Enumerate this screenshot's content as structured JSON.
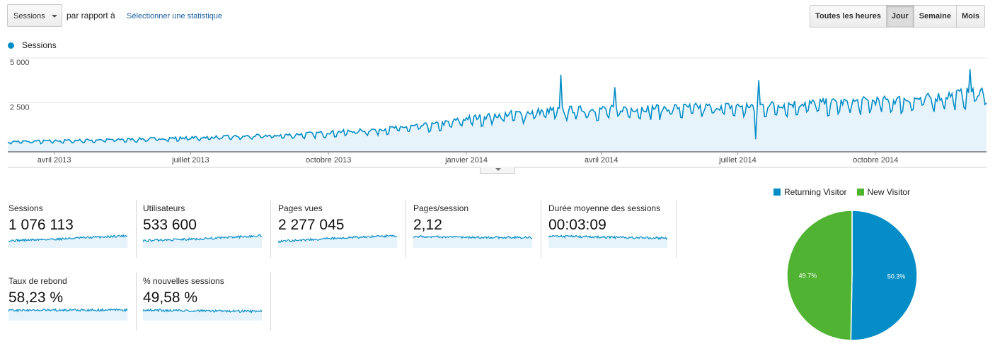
{
  "toolbar": {
    "metric_select": "Sessions",
    "compare_label": "par rapport à",
    "select_stat_link": "Sélectionner une statistique",
    "periods": [
      {
        "label": "Toutes les heures",
        "active": false
      },
      {
        "label": "Jour",
        "active": true
      },
      {
        "label": "Semaine",
        "active": false
      },
      {
        "label": "Mois",
        "active": false
      }
    ]
  },
  "colors": {
    "series": "#058dc7",
    "fill": "#e6f3fa",
    "new_visitor": "#50b432",
    "grid": "#e5e5e5"
  },
  "chart_data": [
    {
      "type": "area",
      "series": [
        {
          "name": "Sessions"
        }
      ],
      "ylim": [
        0,
        5000
      ],
      "ytick_labels": [
        "5 000",
        "2 500"
      ],
      "yticks": [
        5000,
        2500
      ],
      "xtick_labels": [
        "avril 2013",
        "juillet 2013",
        "octobre 2013",
        "janvier 2014",
        "avril 2014",
        "juillet 2014",
        "octobre 2014"
      ],
      "x_range": [
        "2013-03-01",
        "2014-12-14"
      ],
      "trend": [
        [
          "2013-03-01",
          550
        ],
        [
          "2013-06-01",
          700
        ],
        [
          "2013-09-01",
          900
        ],
        [
          "2013-11-01",
          1200
        ],
        [
          "2013-12-15",
          1500
        ],
        [
          "2014-01-01",
          1800
        ],
        [
          "2014-02-01",
          2050
        ],
        [
          "2014-03-01",
          2250
        ],
        [
          "2014-05-01",
          2350
        ],
        [
          "2014-07-01",
          2450
        ],
        [
          "2014-09-01",
          2650
        ],
        [
          "2014-11-01",
          2850
        ],
        [
          "2014-12-14",
          3300
        ]
      ],
      "peaks": [
        [
          "2014-03-05",
          4300
        ],
        [
          "2014-04-10",
          3600
        ],
        [
          "2014-07-15",
          4000
        ],
        [
          "2014-12-03",
          4600
        ]
      ],
      "dips": [
        [
          "2014-07-13",
          700
        ]
      ]
    },
    {
      "type": "pie",
      "labels": [
        "Returning Visitor",
        "New Visitor"
      ],
      "values": [
        50.3,
        49.7
      ],
      "value_labels": [
        "50.3%",
        "49.7%"
      ],
      "legend": "top"
    }
  ],
  "scorecards": [
    {
      "label": "Sessions",
      "value": "1 076 113",
      "trend": [
        0.45,
        0.62,
        0.85
      ]
    },
    {
      "label": "Utilisateurs",
      "value": "533 600",
      "trend": [
        0.45,
        0.6,
        0.85
      ]
    },
    {
      "label": "Pages vues",
      "value": "2 277 045",
      "trend": [
        0.4,
        0.65,
        0.85
      ]
    },
    {
      "label": "Pages/session",
      "value": "2,12",
      "trend": [
        0.78,
        0.72,
        0.7
      ]
    },
    {
      "label": "Durée moyenne des sessions",
      "value": "00:03:09",
      "trend": [
        0.82,
        0.72,
        0.65
      ]
    },
    {
      "label": "Taux de rebond",
      "value": "58,23 %",
      "trend": [
        0.68,
        0.72,
        0.72
      ]
    },
    {
      "label": "% nouvelles sessions",
      "value": "49,58 %",
      "trend": [
        0.72,
        0.65,
        0.62
      ]
    }
  ]
}
